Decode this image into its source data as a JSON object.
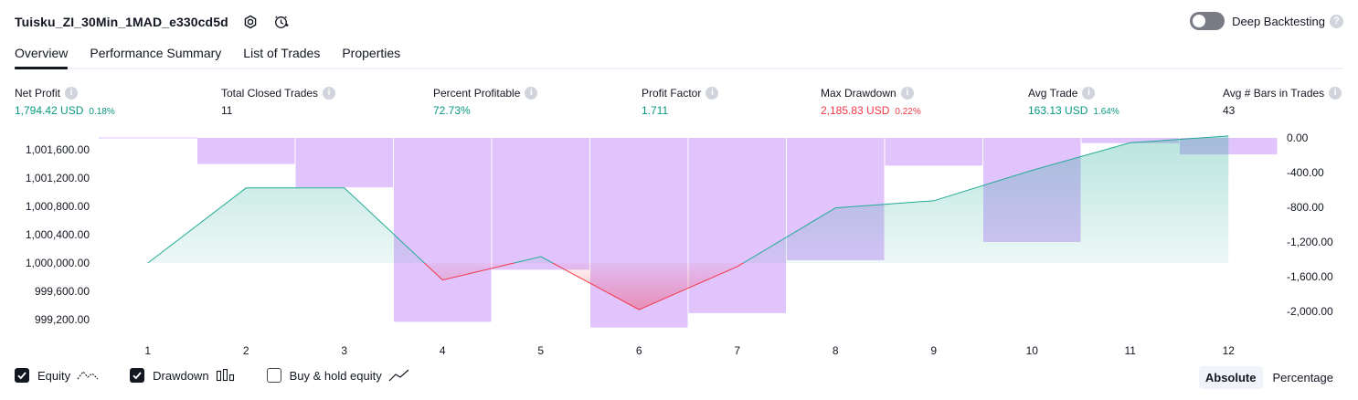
{
  "header": {
    "title": "Tuisku_ZI_30Min_1MAD_e330cd5d",
    "deep_backtesting_label": "Deep Backtesting",
    "deep_backtesting_enabled": false
  },
  "tabs": [
    {
      "label": "Overview",
      "active": true
    },
    {
      "label": "Performance Summary",
      "active": false
    },
    {
      "label": "List of Trades",
      "active": false
    },
    {
      "label": "Properties",
      "active": false
    }
  ],
  "metrics": {
    "net_profit": {
      "label": "Net Profit",
      "value": "1,794.42 USD",
      "pct": "0.18%"
    },
    "total_closed_trades": {
      "label": "Total Closed Trades",
      "value": "11"
    },
    "percent_profitable": {
      "label": "Percent Profitable",
      "value": "72.73%"
    },
    "profit_factor": {
      "label": "Profit Factor",
      "value": "1.711"
    },
    "max_drawdown": {
      "label": "Max Drawdown",
      "value": "2,185.83 USD",
      "pct": "0.22%"
    },
    "avg_trade": {
      "label": "Avg Trade",
      "value": "163.13 USD",
      "pct": "1.64%"
    },
    "avg_bars": {
      "label": "Avg # Bars in Trades",
      "value": "43"
    }
  },
  "chart_data": {
    "type": "line",
    "x": [
      1,
      2,
      3,
      4,
      5,
      6,
      7,
      8,
      9,
      10,
      11,
      12
    ],
    "series": [
      {
        "name": "Equity",
        "axis": "left",
        "values": [
          1000000,
          1001060,
          1001060,
          999760,
          1000090,
          999340,
          999950,
          1000780,
          1000880,
          1001310,
          1001700,
          1001794.42
        ]
      },
      {
        "name": "Drawdown",
        "axis": "right",
        "type": "bar",
        "values": [
          0,
          -300,
          -570,
          -2120,
          -1520,
          -2185.83,
          -2020,
          -1410,
          -320,
          -1200,
          -60,
          -190
        ]
      }
    ],
    "left_axis": {
      "ticks": [
        "1,001,600.00",
        "1,001,200.00",
        "1,000,800.00",
        "1,000,400.00",
        "1,000,000.00",
        "999,600.00",
        "999,200.00"
      ],
      "range": [
        999000,
        1001800
      ]
    },
    "right_axis": {
      "ticks": [
        "0.00",
        "-400.00",
        "-800.00",
        "-1,200.00",
        "-1,600.00",
        "-2,000.00"
      ],
      "range": [
        -2200,
        0
      ]
    },
    "x_tick_labels": [
      "1",
      "2",
      "3",
      "4",
      "5",
      "6",
      "7",
      "8",
      "9",
      "10",
      "11",
      "12"
    ],
    "colors": {
      "equity_up": "#22ab94",
      "equity_down": "#f23645",
      "drawdown": "#e1c4fc",
      "buy_hold": "#131722"
    }
  },
  "legend": {
    "items": [
      {
        "label": "Equity",
        "checked": true
      },
      {
        "label": "Drawdown",
        "checked": true
      },
      {
        "label": "Buy & hold equity",
        "checked": false
      }
    ]
  },
  "mode": {
    "absolute": "Absolute",
    "percentage": "Percentage",
    "selected": "Absolute"
  }
}
